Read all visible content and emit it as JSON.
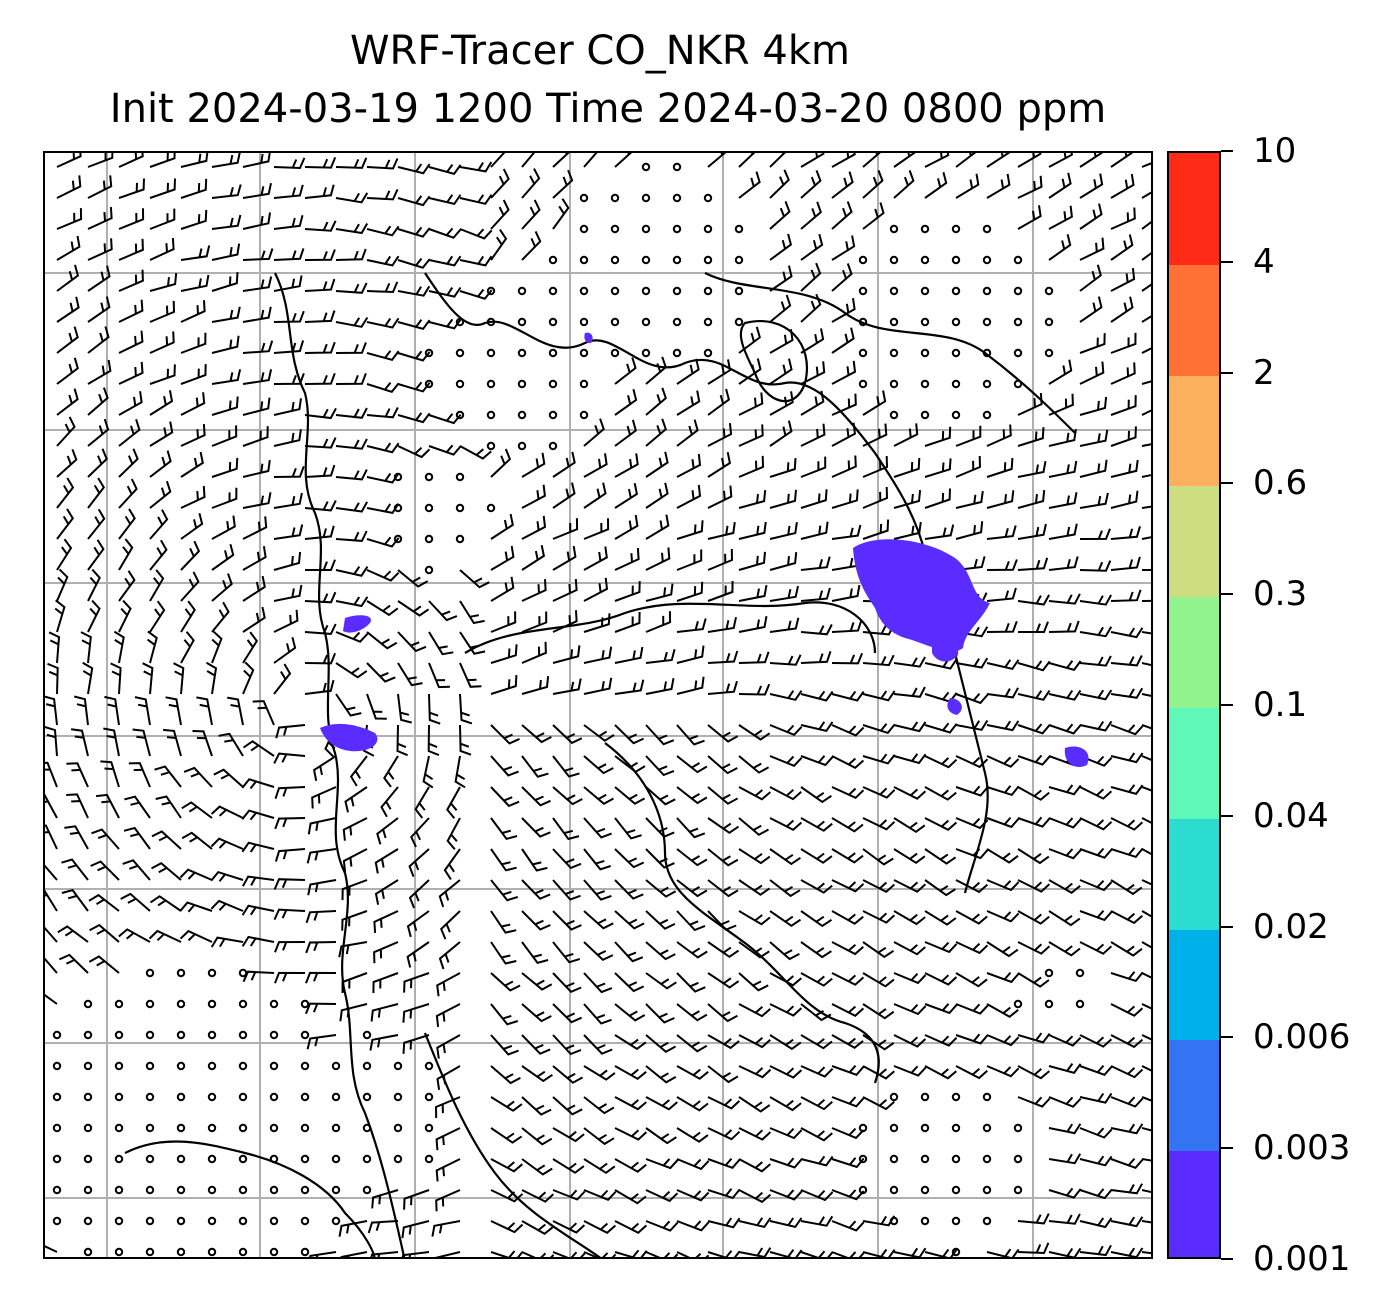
{
  "title": {
    "line1": "WRF-Tracer CO_NKR 4km",
    "line2": "Init 2024-03-19 1200 Time 2024-03-20 0800 ppm"
  },
  "colorbar": {
    "levels": [
      "0.001",
      "0.003",
      "0.006",
      "0.02",
      "0.04",
      "0.1",
      "0.3",
      "0.6",
      "2",
      "4",
      "10"
    ],
    "colors": [
      "#5a2cff",
      "#3473f2",
      "#00b0e8",
      "#2bdcd1",
      "#5ff8b8",
      "#90f38e",
      "#cedd7f",
      "#fbb05e",
      "#ff7135",
      "#ff2b16"
    ]
  },
  "map": {
    "tracer_color": "#5a2cff",
    "gridline_color": "#b0b0b0",
    "coastline_color": "#000000",
    "wind_symbols": [
      "wind-barb",
      "calm-circle"
    ]
  }
}
